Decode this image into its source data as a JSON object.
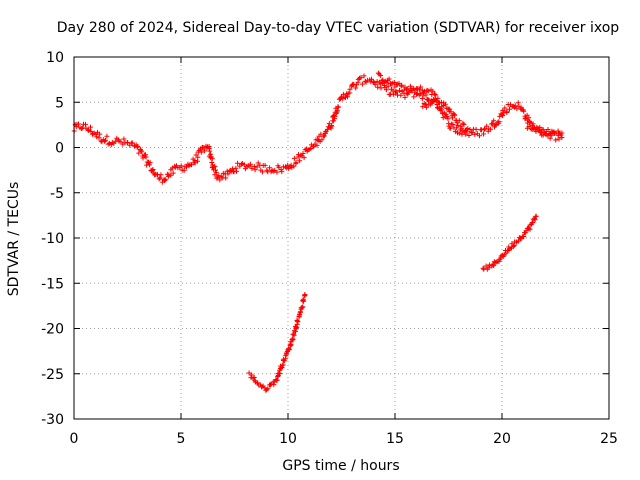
{
  "chart_data": {
    "type": "scatter",
    "title": "Day 280 of 2024, Sidereal Day-to-day VTEC variation (SDTVAR) for receiver ixop",
    "xlabel": "GPS time / hours",
    "ylabel": "SDTVAR / TECUs",
    "xlim": [
      0,
      25
    ],
    "ylim": [
      -30,
      10
    ],
    "x_ticks": [
      0,
      5,
      10,
      15,
      20,
      25
    ],
    "y_ticks": [
      10,
      5,
      0,
      -5,
      -10,
      -15,
      -20,
      -25,
      -30
    ],
    "grid": true,
    "marker": "plus",
    "color": "#ff0000",
    "series": [
      {
        "name": "main-trace",
        "band": 0.9,
        "points": [
          [
            0.0,
            2.0
          ],
          [
            0.2,
            2.3
          ],
          [
            0.4,
            2.4
          ],
          [
            0.7,
            2.0
          ],
          [
            1.0,
            1.5
          ],
          [
            1.3,
            1.0
          ],
          [
            1.6,
            0.8
          ],
          [
            2.0,
            0.7
          ],
          [
            2.4,
            0.5
          ],
          [
            2.8,
            0.2
          ],
          [
            3.1,
            -0.5
          ],
          [
            3.4,
            -1.5
          ],
          [
            3.7,
            -2.6
          ],
          [
            3.9,
            -3.3
          ],
          [
            4.2,
            -3.4
          ],
          [
            4.5,
            -2.9
          ],
          [
            4.8,
            -2.3
          ],
          [
            5.2,
            -2.1
          ],
          [
            5.6,
            -1.6
          ],
          [
            5.9,
            -0.6
          ],
          [
            6.1,
            0.0
          ],
          [
            6.3,
            -0.3
          ],
          [
            6.5,
            -2.0
          ],
          [
            6.7,
            -3.2
          ],
          [
            7.0,
            -3.3
          ],
          [
            7.3,
            -2.7
          ],
          [
            7.6,
            -2.2
          ],
          [
            8.0,
            -2.0
          ],
          [
            8.4,
            -2.0
          ],
          [
            8.8,
            -2.3
          ],
          [
            9.2,
            -2.3
          ],
          [
            9.6,
            -2.4
          ],
          [
            10.0,
            -2.2
          ],
          [
            10.4,
            -1.4
          ],
          [
            10.8,
            -0.6
          ],
          [
            11.2,
            0.2
          ],
          [
            11.6,
            1.3
          ],
          [
            12.0,
            2.5
          ],
          [
            12.3,
            4.5
          ],
          [
            12.6,
            5.6
          ],
          [
            13.0,
            6.6
          ],
          [
            13.4,
            7.4
          ],
          [
            13.8,
            7.6
          ],
          [
            14.2,
            7.0
          ],
          [
            14.6,
            6.4
          ],
          [
            15.0,
            6.0
          ],
          [
            15.4,
            5.8
          ],
          [
            15.8,
            6.0
          ],
          [
            16.2,
            5.9
          ],
          [
            16.6,
            5.3
          ],
          [
            17.0,
            4.8
          ],
          [
            17.3,
            3.6
          ],
          [
            17.6,
            2.4
          ],
          [
            18.0,
            1.8
          ],
          [
            18.5,
            1.6
          ],
          [
            19.0,
            1.7
          ],
          [
            19.4,
            2.2
          ],
          [
            19.8,
            3.0
          ],
          [
            20.1,
            4.0
          ],
          [
            20.4,
            4.6
          ],
          [
            20.7,
            4.7
          ],
          [
            21.0,
            4.0
          ],
          [
            21.3,
            2.6
          ],
          [
            21.7,
            1.9
          ],
          [
            22.0,
            1.6
          ],
          [
            22.4,
            1.3
          ],
          [
            22.8,
            1.1
          ]
        ]
      },
      {
        "name": "upper-branch",
        "band": 0.7,
        "points": [
          [
            14.2,
            7.9
          ],
          [
            14.6,
            7.4
          ],
          [
            15.0,
            6.9
          ],
          [
            15.4,
            6.6
          ],
          [
            15.8,
            6.4
          ],
          [
            16.2,
            6.4
          ],
          [
            16.6,
            6.2
          ],
          [
            16.9,
            5.8
          ]
        ]
      },
      {
        "name": "hump-branch",
        "band": 0.8,
        "points": [
          [
            16.3,
            4.6
          ],
          [
            16.7,
            5.0
          ],
          [
            17.0,
            5.2
          ],
          [
            17.2,
            4.9
          ],
          [
            17.4,
            4.4
          ],
          [
            17.7,
            3.6
          ],
          [
            18.0,
            2.6
          ],
          [
            18.4,
            2.1
          ]
        ]
      },
      {
        "name": "tail-branch",
        "band": 0.6,
        "points": [
          [
            21.2,
            2.3
          ],
          [
            21.6,
            2.0
          ],
          [
            22.0,
            1.8
          ],
          [
            22.4,
            1.7
          ],
          [
            22.8,
            1.6
          ]
        ]
      },
      {
        "name": "low-segment-1",
        "band": 0.5,
        "points": [
          [
            8.2,
            -25.1
          ],
          [
            8.5,
            -25.8
          ],
          [
            8.9,
            -26.7
          ],
          [
            9.2,
            -26.3
          ],
          [
            9.5,
            -25.5
          ],
          [
            9.8,
            -23.5
          ],
          [
            10.0,
            -22.5
          ],
          [
            10.3,
            -20.5
          ],
          [
            10.6,
            -18.0
          ],
          [
            10.8,
            -16.3
          ]
        ]
      },
      {
        "name": "low-segment-2",
        "band": 0.5,
        "points": [
          [
            19.1,
            -13.3
          ],
          [
            19.5,
            -13.2
          ],
          [
            19.8,
            -12.5
          ],
          [
            20.2,
            -11.5
          ],
          [
            20.6,
            -10.5
          ],
          [
            21.0,
            -9.6
          ],
          [
            21.3,
            -8.8
          ],
          [
            21.6,
            -7.6
          ]
        ]
      }
    ]
  }
}
